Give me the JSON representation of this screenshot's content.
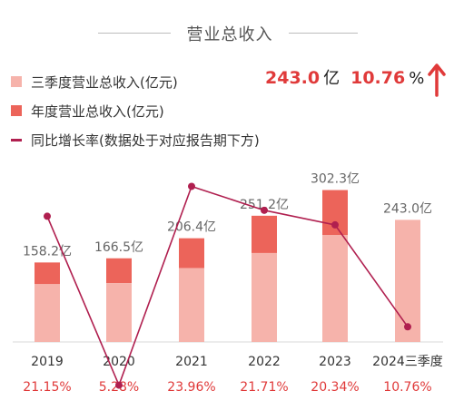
{
  "title": "营业总收入",
  "headline": {
    "value": "243.0",
    "unit": "亿",
    "pct": "10.76",
    "pct_sign": "%",
    "arrow_icon": "up-arrow-icon"
  },
  "legend": [
    {
      "label": "三季度营业总收入(亿元)",
      "color": "#f6b3ab",
      "kind": "square"
    },
    {
      "label": "年度营业总收入(亿元)",
      "color": "#ec645a",
      "kind": "square"
    },
    {
      "label": "同比增长率(数据处于对应报告期下方)",
      "color": "#b01f4f",
      "kind": "line"
    }
  ],
  "colors": {
    "q3": "#f6b3ab",
    "annual": "#ec645a",
    "growth": "#b01f4f",
    "pct_text": "#e03a3a",
    "value_label": "#666666"
  },
  "chart_data": {
    "type": "bar",
    "categories": [
      "2019",
      "2020",
      "2021",
      "2022",
      "2023",
      "2024三季度"
    ],
    "series": [
      {
        "name": "三季度营业总收入(亿元)",
        "values": [
          115,
          117,
          147,
          177,
          213,
          243.0
        ]
      },
      {
        "name": "年度营业总收入(亿元)",
        "values": [
          158.2,
          166.5,
          206.4,
          251.2,
          302.3,
          null
        ]
      },
      {
        "name": "同比增长率(数据处于对应报告期下方)",
        "type": "line",
        "values": [
          21.15,
          5.28,
          23.96,
          21.71,
          20.34,
          10.76
        ]
      }
    ],
    "value_labels": [
      "158.2亿",
      "166.5亿",
      "206.4亿",
      "251.2亿",
      "302.3亿",
      "243.0亿"
    ],
    "growth_labels": [
      "21.15%",
      "5.28%",
      "23.96%",
      "21.71%",
      "20.34%",
      "10.76%"
    ],
    "ylim": [
      0,
      330
    ]
  }
}
